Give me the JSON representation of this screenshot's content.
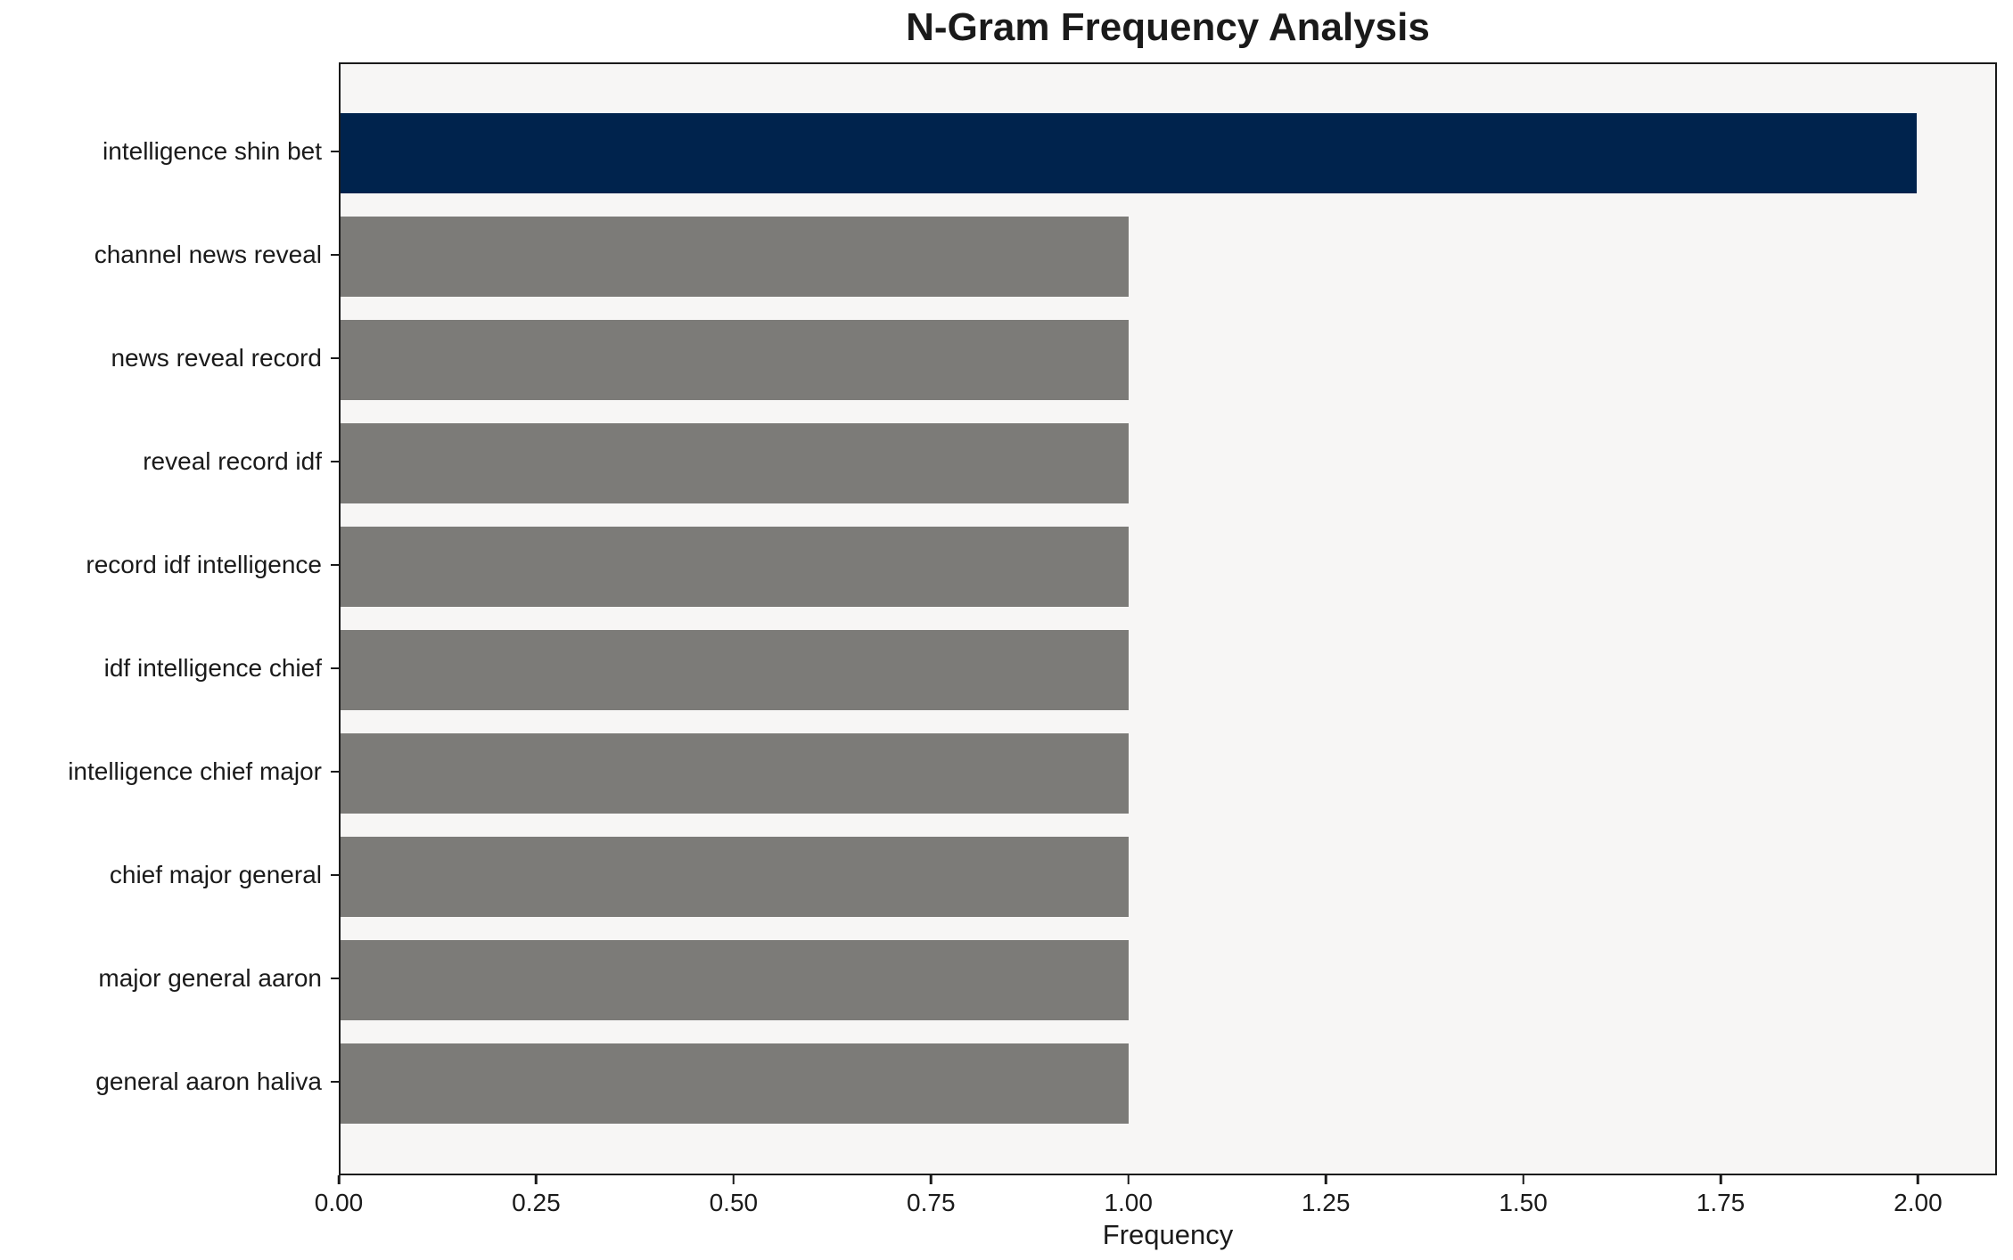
{
  "chart": {
    "title": "N-Gram Frequency Analysis",
    "xlabel": "Frequency"
  },
  "chart_data": {
    "type": "bar",
    "orientation": "horizontal",
    "title": "N-Gram Frequency Analysis",
    "xlabel": "Frequency",
    "ylabel": "",
    "categories": [
      "intelligence shin bet",
      "channel news reveal",
      "news reveal record",
      "reveal record idf",
      "record idf intelligence",
      "idf intelligence chief",
      "intelligence chief major",
      "chief major general",
      "major general aaron",
      "general aaron haliva"
    ],
    "values": [
      2,
      1,
      1,
      1,
      1,
      1,
      1,
      1,
      1,
      1
    ],
    "xlim": [
      0,
      2.1
    ],
    "xticks": [
      "0.00",
      "0.25",
      "0.50",
      "0.75",
      "1.00",
      "1.25",
      "1.50",
      "1.75",
      "2.00"
    ],
    "xtick_values": [
      0,
      0.25,
      0.5,
      0.75,
      1.0,
      1.25,
      1.5,
      1.75,
      2.0
    ],
    "grid": false,
    "legend": false,
    "colors": {
      "bar_colors": [
        "#00234d",
        "#7c7b78",
        "#7c7b78",
        "#7c7b78",
        "#7c7b78",
        "#7c7b78",
        "#7c7b78",
        "#7c7b78",
        "#7c7b78",
        "#7c7b78"
      ],
      "highlight_bar": "#00234d",
      "default_bar": "#7c7b78",
      "plot_background": "#f7f6f5",
      "figure_background": "#ffffff",
      "axis": "#1a1a1a"
    }
  }
}
